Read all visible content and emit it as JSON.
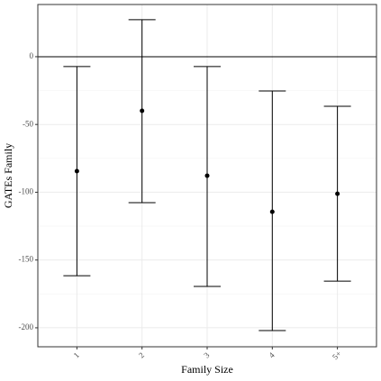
{
  "chart_data": {
    "type": "errorbar",
    "x_label": "Family Size",
    "y_label": "GATEs Family",
    "categories": [
      "1",
      "2",
      "3",
      "4",
      "5+"
    ],
    "values": [
      -84.4,
      -39.9,
      -87.8,
      -114.4,
      -101.1
    ],
    "lower": [
      -161.6,
      -107.7,
      -169.5,
      -202,
      -165.6
    ],
    "upper": [
      -7.3,
      27.3,
      -7.3,
      -25.3,
      -36.6
    ],
    "color": "#000000",
    "hline": 0,
    "ylim": [
      -214,
      38.5
    ],
    "yticks": [
      0,
      -50,
      -100,
      -150,
      -200
    ],
    "grid": true
  }
}
